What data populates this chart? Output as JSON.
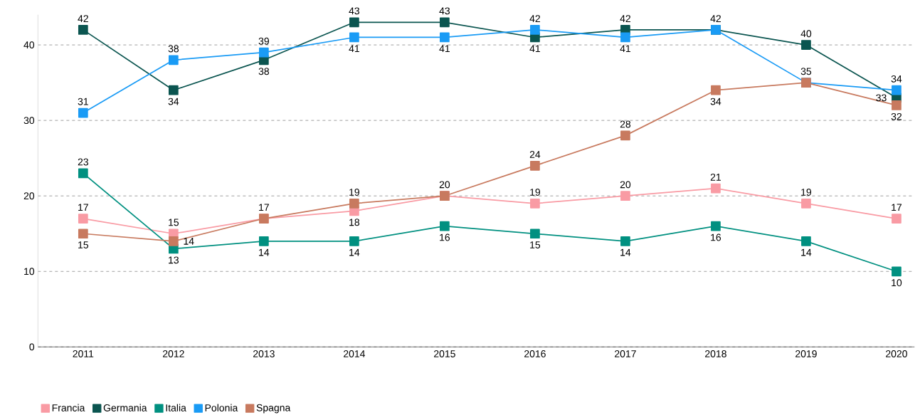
{
  "chart_data": {
    "type": "line",
    "categories": [
      "2011",
      "2012",
      "2013",
      "2014",
      "2015",
      "2016",
      "2017",
      "2018",
      "2019",
      "2020"
    ],
    "series": [
      {
        "name": "Francia",
        "color": "#f99ba4",
        "values": [
          17,
          15,
          17,
          18,
          20,
          19,
          20,
          21,
          19,
          17
        ],
        "value_labels": [
          "17",
          "15",
          "17",
          "18",
          "20",
          "19",
          "20",
          "21",
          "19",
          "17"
        ]
      },
      {
        "name": "Germania",
        "color": "#0b5550",
        "values": [
          42,
          34,
          38,
          43,
          43,
          41,
          42,
          42,
          40,
          33
        ],
        "value_labels": [
          "42",
          "34",
          "38",
          "43",
          "43",
          "41",
          "42",
          "42",
          "40",
          "33"
        ]
      },
      {
        "name": "Italia",
        "color": "#009080",
        "values": [
          23,
          13,
          14,
          14,
          16,
          15,
          14,
          16,
          14,
          10
        ],
        "value_labels": [
          "23",
          "13",
          "14",
          "14",
          "16",
          "15",
          "14",
          "16",
          "14",
          "10"
        ]
      },
      {
        "name": "Polonia",
        "color": "#1a9bf5",
        "values": [
          31,
          38,
          39,
          41,
          41,
          42,
          41,
          42,
          35,
          34
        ],
        "value_labels": [
          "31",
          "38",
          "39",
          "41",
          "41",
          "42",
          "41",
          null,
          "35",
          "34"
        ]
      },
      {
        "name": "Spagna",
        "color": "#c87a5f",
        "values": [
          15,
          14,
          17,
          19,
          20,
          24,
          28,
          34,
          35,
          32
        ],
        "value_labels": [
          "15",
          "14",
          null,
          "19",
          null,
          "24",
          "28",
          "34",
          null,
          "32"
        ]
      }
    ],
    "ylim": [
      0,
      44
    ],
    "yticks": [
      0,
      10,
      20,
      30,
      40
    ],
    "grid": "y",
    "marker": "square",
    "legend": "bottom left"
  }
}
